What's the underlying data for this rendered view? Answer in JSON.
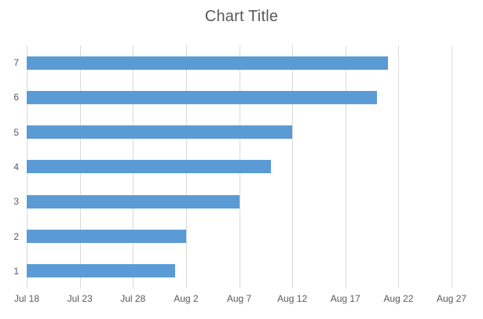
{
  "colors": {
    "bar": "#5b9bd5",
    "gridline": "#d9d9d9",
    "text": "#595959",
    "background": "#ffffff"
  },
  "chart_data": {
    "type": "bar",
    "orientation": "horizontal",
    "title": "Chart Title",
    "categories": [
      "7",
      "6",
      "5",
      "4",
      "3",
      "2",
      "1"
    ],
    "values": [
      34,
      33,
      25,
      23,
      20,
      15,
      14
    ],
    "bar_end_dates": [
      "Aug 21",
      "Aug 20",
      "Aug 12",
      "Aug 10",
      "Aug 7",
      "Aug 2",
      "Aug 1"
    ],
    "xlabel": "",
    "ylabel": "",
    "x_axis": {
      "start_date": "Jul 18",
      "tick_labels": [
        "Jul 18",
        "Jul 23",
        "Jul 28",
        "Aug 2",
        "Aug 7",
        "Aug 12",
        "Aug 17",
        "Aug 22",
        "Aug 27"
      ],
      "range": [
        0,
        40
      ],
      "tick_interval": 5
    },
    "grid": "vertical-major-only",
    "legend": "none",
    "bar_color": "#5b9bd5"
  }
}
